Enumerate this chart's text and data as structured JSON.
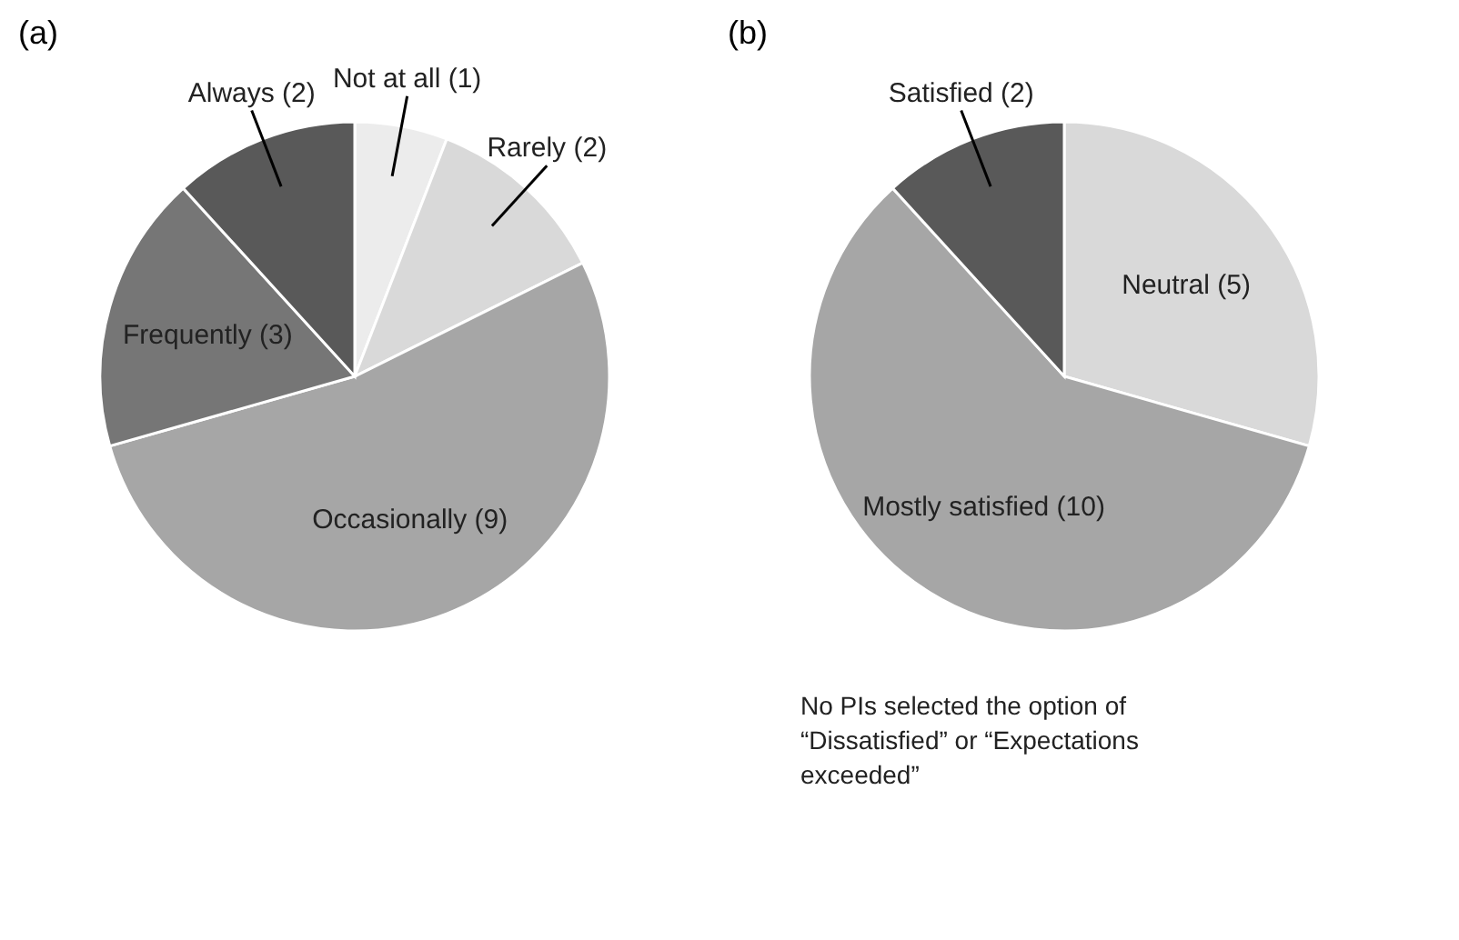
{
  "chart_data": [
    {
      "type": "pie",
      "title": "(a)",
      "categories": [
        "Not at all (1)",
        "Rarely (2)",
        "Occasionally (9)",
        "Frequently (3)",
        "Always (2)"
      ],
      "values": [
        1,
        2,
        9,
        3,
        2
      ],
      "colors": [
        "#ececec",
        "#d9d9d9",
        "#a6a6a6",
        "#767676",
        "#595959"
      ],
      "legend": false
    },
    {
      "type": "pie",
      "title": "(b)",
      "categories": [
        "Neutral (5)",
        "Mostly satisfied (10)",
        "Satisfied (2)"
      ],
      "values": [
        5,
        10,
        2
      ],
      "colors": [
        "#d9d9d9",
        "#a6a6a6",
        "#595959"
      ],
      "legend": false,
      "annotations": [
        "No PIs selected the option of “Dissatisfied” or “Expectations exceeded”"
      ]
    }
  ]
}
